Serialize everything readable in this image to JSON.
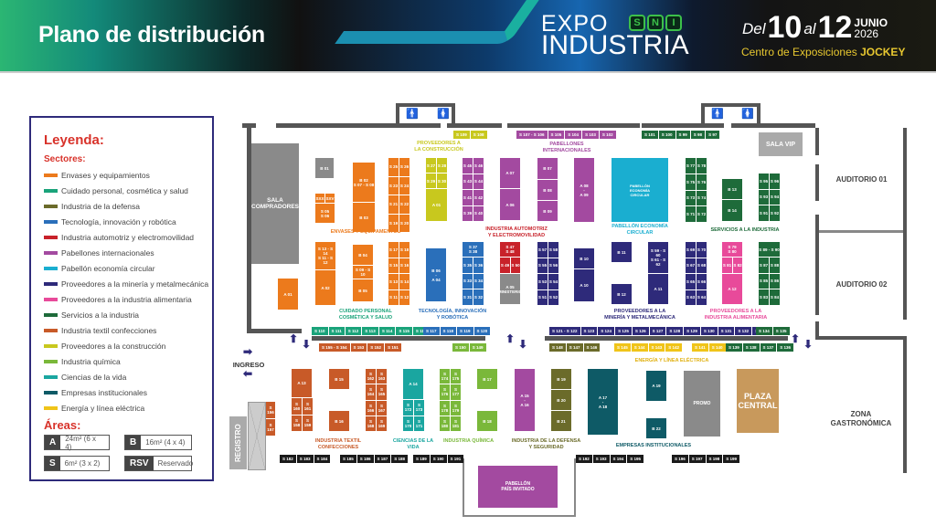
{
  "header": {
    "title": "Plano de distribución",
    "logo_expo": "EXPO",
    "logo_industria": "INDUSTRIA",
    "logo_sni": [
      "S",
      "N",
      "I"
    ],
    "date_del": "Del",
    "date_start": "10",
    "date_al": "al",
    "date_end": "12",
    "date_month": "JUNIO",
    "date_year": "2026",
    "venue": "Centro de Exposiciones",
    "venue_strong": "JOCKEY"
  },
  "legend": {
    "title": "Leyenda:",
    "sectors_title": "Sectores:",
    "sectors": [
      {
        "label": "Envases y equipamientos",
        "color": "#ec7a1c"
      },
      {
        "label": "Cuidado personal, cosmética y salud",
        "color": "#1aa37a"
      },
      {
        "label": "Industria de la defensa",
        "color": "#6b6b2a"
      },
      {
        "label": "Tecnología, innovación y robótica",
        "color": "#2a6fba"
      },
      {
        "label": "Industria automotriz y electromovilidad",
        "color": "#c8222a"
      },
      {
        "label": "Pabellones internacionales",
        "color": "#a34aa0"
      },
      {
        "label": "Pabellón economía circular",
        "color": "#1aaed0"
      },
      {
        "label": "Proveedores a la minería y metalmecánica",
        "color": "#2e2a7a"
      },
      {
        "label": "Proveedores a la industria alimentaria",
        "color": "#e84a9a"
      },
      {
        "label": "Servicios a la industria",
        "color": "#1e6b3a"
      },
      {
        "label": "Industria textil confecciones",
        "color": "#c85a28"
      },
      {
        "label": "Proveedores a la construcción",
        "color": "#c8c81e"
      },
      {
        "label": "Industria química",
        "color": "#7ab83a"
      },
      {
        "label": "Ciencias de la vida",
        "color": "#1aa6a0"
      },
      {
        "label": "Empresas institucionales",
        "color": "#0e5a66"
      },
      {
        "label": "Energía y línea eléctrica",
        "color": "#f0c419"
      }
    ],
    "areas_title": "Áreas:",
    "areas": [
      {
        "code": "A",
        "desc": "24m²  (6 x 4)"
      },
      {
        "code": "B",
        "desc": "16m²  (4 x 4)"
      },
      {
        "code": "S",
        "desc": "6m²  (3 x 2)"
      },
      {
        "code": "RSV",
        "desc": "Reservado"
      }
    ]
  },
  "rooms": {
    "sala_compradores": "SALA\nCOMPRADORES",
    "sala_vip": "SALA VIP",
    "auditorio1": "AUDITORIO 01",
    "auditorio2": "AUDITORIO 02",
    "zona_gastro": "ZONA\nGASTRONÓMICA",
    "plaza": "PLAZA\nCENTRAL",
    "promo": "PROMO",
    "registro": "REGISTRO",
    "ingreso": "INGRESO",
    "pais_invitado": "PABELLÓN\nPAÍS INVITADO",
    "circular": "PABELLÓN\nECONOMÍA\nCIRCULAR"
  },
  "zones": {
    "construccion": "PROVEEDORES A\nLA CONSTRUCCIÓN",
    "pabellones": "PABELLONES\nINTERNACIONALES",
    "envases": "ENVASES Y EQUIPAMENTOS",
    "automotriz": "INDUSTRIA AUTOMOTRIZ\nY ELECTROMOVILIDAD",
    "circular": "PABELLÓN ECONOMÍA\nCIRCULAR",
    "servicios": "SERVICIOS A LA INDUSTRIA",
    "cosmetica": "CUIDADO PERSONAL\nCOSMÉTICA Y SALUD",
    "tecnologia": "TECNOLOGÍA, INNOVACIÓN\nY ROBÓTICA",
    "mineria": "PROVEEDORES A LA\nMINERÍA Y METALMECÁNICA",
    "alimentaria": "PROVEEDORES A LA\nINDUSTRIA ALIMENTARIA",
    "energia": "ENERGÍA Y LÍNEA ELÉCTRICA",
    "textil": "INDUSTRIA TEXTIL\nCONFECCIONES",
    "ciencias": "CIENCIAS DE LA\nVIDA",
    "quimica": "INDUSTRIA QUÍMICA",
    "defensa": "INDUSTRIA DE LA DEFENSA\nY SEGURIDAD",
    "institucionales": "EMPRESAS INSTITUCIONALES"
  },
  "booths": {
    "b01": "B 01",
    "sxx": "SXX",
    "sxv": "SXV",
    "s0506": "S 05\nS 06",
    "b02": "B 02\nS 07 - S 08",
    "b03": "B 03",
    "colA": [
      "S 25",
      "S 26",
      "S 23",
      "S 24",
      "S 21",
      "S 22",
      "S 19",
      "S 20"
    ],
    "colCon": [
      "S 27",
      "S 28",
      "S 29",
      "S 30"
    ],
    "a01c": "A 01",
    "colPab": [
      "S 45",
      "S 46",
      "S 43",
      "S 44",
      "S 41",
      "S 42",
      "S 39",
      "S 40"
    ],
    "a07": "A 07",
    "a06": "A 06",
    "b07": "B 07",
    "b08": "B 08",
    "b09": "B 09",
    "a0809": "A 08\n-\nA 09",
    "colSer1": [
      "S 77",
      "S 78",
      "S 75",
      "S 76",
      "S 73",
      "S 74",
      "S 71",
      "S 72"
    ],
    "b13": "B 13",
    "b14": "B 14",
    "colSer2": [
      "S 95",
      "S 96",
      "S 93",
      "S 94",
      "S 91",
      "S 92"
    ],
    "a01": "A 01",
    "s1114": "S 13 - S 14\nS 11 - S 12",
    "a02": "A 02",
    "b04": "B 04",
    "s0910": "S 09 - S 10",
    "b05": "B 05",
    "colB": [
      "S 17",
      "S 18",
      "S 15",
      "S 16",
      "S 13",
      "S 14",
      "S 11",
      "S 12"
    ],
    "b06a04": "B 06\n-\nA 04",
    "s3738": "S 37\nS 38",
    "colTec": [
      "S 35",
      "S 36",
      "S 33",
      "S 34",
      "S 31",
      "S 32"
    ],
    "s4748": "S 47\nS 48",
    "s49": "S 49",
    "s50": "S 50",
    "a05": "A 05\nMINISTERIO",
    "colMin": [
      "S 57",
      "S 58",
      "S 55",
      "S 56",
      "S 53",
      "S 54",
      "S 51",
      "S 52"
    ],
    "b10": "B 10",
    "a10": "A 10",
    "b11": "B 11",
    "b12": "B 12",
    "s5962": "S 59 - S 60\nS 61 - S 62",
    "a11": "A 11",
    "colMin2": [
      "S 69",
      "S 70",
      "S 67",
      "S 68",
      "S 65",
      "S 66",
      "S 63",
      "S 64"
    ],
    "s7980": "S 79\nS 80",
    "s81": "S 81",
    "s82": "S 82",
    "a12": "A 12",
    "s8990": "S 89 - S 90",
    "colSer3": [
      "S 87",
      "S 88",
      "S 85",
      "S 86",
      "S 83",
      "S 84"
    ],
    "topPab": [
      "S 107 - S 106",
      "S 105",
      "S 104",
      "S 103",
      "S 102"
    ],
    "topSer": [
      "S 101",
      "S 100",
      "S 99",
      "S 98",
      "S 97"
    ],
    "topCon": [
      "S 109",
      "S 108"
    ],
    "rowCos": [
      "S 110",
      "S 111",
      "S 112",
      "S 113",
      "S 114",
      "S 115",
      "S 116"
    ],
    "rowTec": [
      "S 117",
      "S 118",
      "S 119",
      "S 120"
    ],
    "rowTex": [
      "S 155 - S 154",
      "S 153",
      "S 152",
      "S 151"
    ],
    "rowQui": [
      "S 150",
      "S 149"
    ],
    "rowMin": [
      "S 121 - S 122",
      "S 123",
      "S 124",
      "S 125",
      "S 126",
      "S 127",
      "S 128",
      "S 129",
      "S 130",
      "S 131",
      "S 132",
      "S 133"
    ],
    "rowSer": [
      "S 134",
      "S 135"
    ],
    "rowDef": [
      "S 148",
      "S 147",
      "S 146"
    ],
    "rowEne1": [
      "S 145",
      "S 144",
      "S 143",
      "S 142"
    ],
    "rowEne2": [
      "S 141",
      "S 140"
    ],
    "rowSer2": [
      "S 139",
      "S 138",
      "S 137",
      "S 136"
    ],
    "s156": "S 156",
    "s157": "S 157",
    "a13": "A 13",
    "colTex1": [
      "S 160",
      "S 161",
      "S 158",
      "S 159"
    ],
    "b15": "B 15",
    "b16": "B 16",
    "colTex2": [
      "S 162",
      "S 163",
      "S 164",
      "S 165",
      "S 166",
      "S 167",
      "S 168",
      "S 169"
    ],
    "a14": "A 14",
    "colCie": [
      "S 172",
      "S 173",
      "S 170",
      "S 171"
    ],
    "colQui": [
      "S 174",
      "S 175",
      "S 176",
      "S 177",
      "S 178",
      "S 179",
      "S 180",
      "S 181"
    ],
    "b17": "B 17",
    "b18": "B 18",
    "a1516": "A 15\n-\nA 16",
    "b19": "B 19",
    "b20": "B 20",
    "b21": "B 21",
    "a1718": "A 17\n-\nA 18",
    "a19": "A 19",
    "b22": "B 22",
    "bot1": [
      "S 182",
      "S 183",
      "S 184"
    ],
    "bot2": [
      "S 185",
      "S 186",
      "S 187",
      "S 188"
    ],
    "bot3": [
      "S 189",
      "S 190",
      "S 191"
    ],
    "bot4": [
      "S 192",
      "S 193",
      "S 194",
      "S 195"
    ],
    "bot5": [
      "S 196",
      "S 197",
      "S 198",
      "S 199"
    ]
  }
}
